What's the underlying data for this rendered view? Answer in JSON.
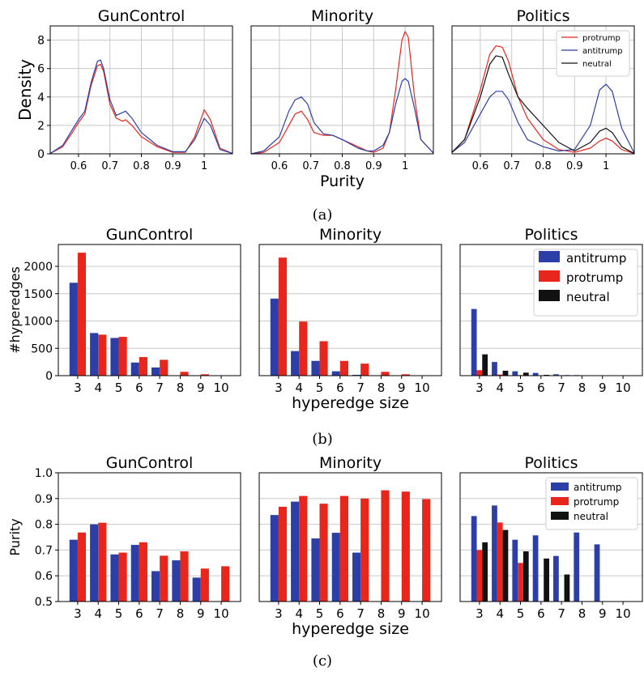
{
  "colors": {
    "protrump": "#e8261c",
    "antitrump": "#2c3fa6",
    "neutral": "#111111",
    "grid": "#c8c8c8"
  },
  "captions": [
    "(a)",
    "(b)",
    "(c)"
  ],
  "chart_data": [
    {
      "type": "line",
      "subfigure": "a",
      "title": "GunControl",
      "xlabel": "",
      "ylabel": "Density",
      "xlim": [
        0.51,
        1.09
      ],
      "ylim": [
        0,
        9
      ],
      "xticks": [
        0.6,
        0.7,
        0.8,
        0.9,
        1.0
      ],
      "xtick_labels": [
        "0.6",
        "0.7",
        "0.8",
        "0.9",
        "1"
      ],
      "yticks": [
        0,
        2,
        4,
        6,
        8
      ],
      "ytick_labels": [
        "0",
        "2",
        "4",
        "6",
        "8"
      ],
      "grid": true,
      "series": [
        {
          "key": "protrump",
          "x": [
            0.51,
            0.55,
            0.58,
            0.6,
            0.62,
            0.64,
            0.66,
            0.67,
            0.68,
            0.7,
            0.72,
            0.74,
            0.75,
            0.77,
            0.8,
            0.85,
            0.9,
            0.94,
            0.97,
            1.0,
            1.02,
            1.05,
            1.09
          ],
          "y": [
            0.02,
            0.5,
            1.5,
            2.2,
            2.8,
            4.8,
            6.2,
            6.3,
            5.8,
            3.5,
            2.5,
            2.3,
            2.4,
            2.0,
            1.2,
            0.5,
            0.1,
            0.1,
            1.2,
            3.1,
            2.4,
            0.4,
            0.02
          ]
        },
        {
          "key": "antitrump",
          "x": [
            0.51,
            0.55,
            0.58,
            0.6,
            0.62,
            0.64,
            0.66,
            0.67,
            0.68,
            0.7,
            0.72,
            0.74,
            0.75,
            0.77,
            0.8,
            0.85,
            0.9,
            0.94,
            0.97,
            1.0,
            1.02,
            1.05,
            1.09
          ],
          "y": [
            0.02,
            0.6,
            1.7,
            2.4,
            3.0,
            5.0,
            6.5,
            6.6,
            6.0,
            3.8,
            2.7,
            2.9,
            3.0,
            2.5,
            1.5,
            0.6,
            0.15,
            0.15,
            1.0,
            2.5,
            2.0,
            0.3,
            0.02
          ]
        }
      ]
    },
    {
      "type": "line",
      "subfigure": "a",
      "title": "Minority",
      "xlabel": "Purity",
      "ylabel": "",
      "xlim": [
        0.51,
        1.09
      ],
      "ylim": [
        0,
        9
      ],
      "xticks": [
        0.6,
        0.7,
        0.8,
        0.9,
        1.0
      ],
      "xtick_labels": [
        "0.6",
        "0.7",
        "0.8",
        "0.9",
        "1"
      ],
      "grid": true,
      "series": [
        {
          "key": "protrump",
          "x": [
            0.51,
            0.55,
            0.6,
            0.63,
            0.65,
            0.67,
            0.69,
            0.71,
            0.74,
            0.77,
            0.8,
            0.85,
            0.88,
            0.9,
            0.93,
            0.95,
            0.97,
            0.99,
            1.0,
            1.01,
            1.03,
            1.05,
            1.09
          ],
          "y": [
            0.0,
            0.1,
            0.8,
            2.0,
            2.8,
            3.0,
            2.4,
            1.5,
            1.3,
            1.3,
            1.0,
            0.5,
            0.2,
            0.1,
            0.4,
            1.5,
            4.5,
            8.0,
            8.6,
            8.2,
            4.0,
            1.0,
            0.05
          ]
        },
        {
          "key": "antitrump",
          "x": [
            0.51,
            0.55,
            0.6,
            0.63,
            0.65,
            0.67,
            0.69,
            0.71,
            0.74,
            0.77,
            0.8,
            0.85,
            0.88,
            0.9,
            0.93,
            0.95,
            0.97,
            0.99,
            1.0,
            1.01,
            1.03,
            1.05,
            1.09
          ],
          "y": [
            0.0,
            0.2,
            1.2,
            3.0,
            3.8,
            4.0,
            3.5,
            2.2,
            1.4,
            1.3,
            1.0,
            0.4,
            0.2,
            0.2,
            0.6,
            1.5,
            3.5,
            5.1,
            5.3,
            5.1,
            3.2,
            1.0,
            0.05
          ]
        }
      ]
    },
    {
      "type": "line",
      "subfigure": "a",
      "title": "Politics",
      "xlabel": "",
      "ylabel": "",
      "xlim": [
        0.51,
        1.09
      ],
      "ylim": [
        0,
        9
      ],
      "xticks": [
        0.6,
        0.7,
        0.8,
        0.9,
        1.0
      ],
      "xtick_labels": [
        "0.6",
        "0.7",
        "0.8",
        "0.9",
        "1"
      ],
      "grid": true,
      "legend": "top-right",
      "series": [
        {
          "key": "protrump",
          "name": "protrump",
          "x": [
            0.51,
            0.55,
            0.6,
            0.63,
            0.65,
            0.67,
            0.69,
            0.72,
            0.75,
            0.8,
            0.85,
            0.9,
            0.95,
            0.98,
            1.0,
            1.02,
            1.05,
            1.09
          ],
          "y": [
            0.1,
            1.0,
            4.5,
            7.0,
            7.6,
            7.5,
            6.5,
            4.0,
            2.5,
            1.0,
            0.3,
            0.1,
            0.4,
            0.9,
            1.1,
            0.9,
            0.3,
            0.02
          ]
        },
        {
          "key": "antitrump",
          "name": "antitrump",
          "x": [
            0.51,
            0.55,
            0.6,
            0.63,
            0.65,
            0.67,
            0.69,
            0.72,
            0.75,
            0.8,
            0.85,
            0.9,
            0.95,
            0.98,
            1.0,
            1.02,
            1.05,
            1.09
          ],
          "y": [
            0.1,
            0.8,
            2.8,
            4.0,
            4.4,
            4.4,
            3.8,
            2.2,
            1.0,
            0.5,
            0.2,
            0.3,
            2.0,
            4.5,
            4.9,
            4.4,
            1.8,
            0.05
          ]
        },
        {
          "key": "neutral",
          "name": "neutral",
          "x": [
            0.51,
            0.55,
            0.6,
            0.63,
            0.65,
            0.67,
            0.69,
            0.72,
            0.75,
            0.8,
            0.85,
            0.9,
            0.95,
            0.98,
            1.0,
            1.02,
            1.05,
            1.09
          ],
          "y": [
            0.1,
            1.0,
            4.0,
            6.3,
            6.9,
            6.8,
            5.6,
            4.0,
            3.2,
            2.0,
            0.8,
            0.2,
            0.8,
            1.6,
            1.8,
            1.5,
            0.5,
            0.02
          ]
        }
      ]
    },
    {
      "type": "bar",
      "subfigure": "b",
      "title": "GunControl",
      "xlabel": "",
      "ylabel": "#hyperedges",
      "categories": [
        "3",
        "4",
        "5",
        "6",
        "7",
        "8",
        "9",
        "10"
      ],
      "ylim": [
        0,
        2400
      ],
      "yticks": [
        0,
        500,
        1000,
        1500,
        2000
      ],
      "ytick_labels": [
        "0",
        "500",
        "1000",
        "1500",
        "2000"
      ],
      "grid": true,
      "series": [
        {
          "key": "antitrump",
          "values": [
            1700,
            780,
            690,
            240,
            150,
            5,
            5,
            2
          ]
        },
        {
          "key": "protrump",
          "values": [
            2250,
            750,
            710,
            340,
            290,
            70,
            25,
            5
          ]
        }
      ]
    },
    {
      "type": "bar",
      "subfigure": "b",
      "title": "Minority",
      "xlabel": "hyperedge size",
      "ylabel": "",
      "categories": [
        "3",
        "4",
        "5",
        "6",
        "7",
        "8",
        "9",
        "10"
      ],
      "ylim": [
        0,
        2400
      ],
      "grid": true,
      "series": [
        {
          "key": "antitrump",
          "values": [
            1410,
            450,
            270,
            80,
            15,
            5,
            5,
            2
          ]
        },
        {
          "key": "protrump",
          "values": [
            2160,
            990,
            630,
            270,
            220,
            70,
            25,
            5
          ]
        }
      ]
    },
    {
      "type": "bar",
      "subfigure": "b",
      "title": "Politics",
      "xlabel": "",
      "ylabel": "",
      "categories": [
        "3",
        "4",
        "5",
        "6",
        "7",
        "8",
        "9",
        "10"
      ],
      "ylim": [
        0,
        2400
      ],
      "grid": true,
      "legend": "top-right",
      "series": [
        {
          "key": "antitrump",
          "name": "antitrump",
          "values": [
            1220,
            250,
            80,
            50,
            25,
            10,
            5,
            2
          ]
        },
        {
          "key": "protrump",
          "name": "protrump",
          "values": [
            100,
            20,
            10,
            5,
            2,
            2,
            0,
            0
          ]
        },
        {
          "key": "neutral",
          "name": "neutral",
          "values": [
            390,
            90,
            55,
            15,
            10,
            3,
            2,
            0
          ]
        }
      ]
    },
    {
      "type": "bar",
      "subfigure": "c",
      "title": "GunControl",
      "xlabel": "",
      "ylabel": "Purity",
      "categories": [
        "3",
        "4",
        "5",
        "6",
        "7",
        "8",
        "9",
        "10"
      ],
      "ylim": [
        0.5,
        1.0
      ],
      "yticks": [
        0.5,
        0.6,
        0.7,
        0.8,
        0.9,
        1.0
      ],
      "ytick_labels": [
        "0.5",
        "0.6",
        "0.7",
        "0.8",
        "0.9",
        "1.0"
      ],
      "grid": true,
      "series": [
        {
          "key": "antitrump",
          "values": [
            0.74,
            0.8,
            0.683,
            0.72,
            0.618,
            0.66,
            0.593,
            null
          ]
        },
        {
          "key": "protrump",
          "values": [
            0.768,
            0.806,
            0.69,
            0.73,
            0.678,
            0.695,
            0.628,
            0.637
          ]
        }
      ]
    },
    {
      "type": "bar",
      "subfigure": "c",
      "title": "Minority",
      "xlabel": "hyperedge size",
      "ylabel": "",
      "categories": [
        "3",
        "4",
        "5",
        "6",
        "7",
        "8",
        "9",
        "10"
      ],
      "ylim": [
        0.5,
        1.0
      ],
      "grid": true,
      "series": [
        {
          "key": "antitrump",
          "values": [
            0.836,
            0.888,
            0.745,
            0.767,
            0.69,
            null,
            null,
            null
          ]
        },
        {
          "key": "protrump",
          "values": [
            0.868,
            0.91,
            0.88,
            0.91,
            0.9,
            0.932,
            0.927,
            0.898
          ]
        }
      ]
    },
    {
      "type": "bar",
      "subfigure": "c",
      "title": "Politics",
      "xlabel": "",
      "ylabel": "",
      "categories": [
        "3",
        "4",
        "5",
        "6",
        "7",
        "8",
        "9",
        "10"
      ],
      "ylim": [
        0.5,
        1.0
      ],
      "grid": true,
      "legend": "top-right",
      "series": [
        {
          "key": "antitrump",
          "name": "antitrump",
          "values": [
            0.832,
            0.873,
            0.74,
            0.757,
            0.677,
            0.768,
            0.722,
            null
          ]
        },
        {
          "key": "protrump",
          "name": "protrump",
          "values": [
            0.7,
            0.807,
            0.65,
            null,
            null,
            null,
            null,
            null
          ]
        },
        {
          "key": "neutral",
          "name": "neutral",
          "values": [
            0.73,
            0.778,
            0.695,
            0.667,
            0.605,
            null,
            null,
            null
          ]
        }
      ]
    }
  ]
}
